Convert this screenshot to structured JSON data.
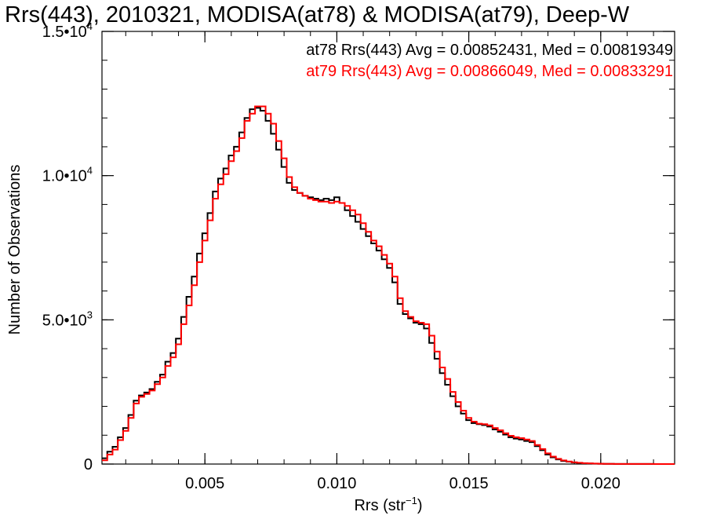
{
  "chart_data": {
    "type": "line",
    "title": "Rrs(443), 2010321, MODISA(at78) & MODISA(at79), Deep-W",
    "xlabel_main": "Rrs (str",
    "xlabel_sup": "−1",
    "xlabel_close": ")",
    "ylabel": "Number of Observations",
    "xlim": [
      0.0011,
      0.0228
    ],
    "ylim": [
      0,
      15000
    ],
    "x_ticks": [
      {
        "value": 0.005,
        "label": "0.005"
      },
      {
        "value": 0.01,
        "label": "0.010"
      },
      {
        "value": 0.015,
        "label": "0.015"
      },
      {
        "value": 0.02,
        "label": "0.020"
      }
    ],
    "x_minor_step": 0.001,
    "y_ticks": [
      {
        "value": 0,
        "mant": "0",
        "exp": ""
      },
      {
        "value": 5000,
        "mant": "5.0•10",
        "exp": "3"
      },
      {
        "value": 10000,
        "mant": "1.0•10",
        "exp": "4"
      },
      {
        "value": 15000,
        "mant": "1.5•10",
        "exp": "4"
      }
    ],
    "y_minor_step": 1000,
    "step_style": "histogram",
    "series": [
      {
        "name": "at78",
        "color": "#000000",
        "legend": "at78 Rrs(443) Avg = 0.00852431, Med = 0.00819349",
        "points": [
          [
            0.0011,
            200
          ],
          [
            0.0013,
            430
          ],
          [
            0.0015,
            600
          ],
          [
            0.0017,
            930
          ],
          [
            0.0019,
            1250
          ],
          [
            0.0021,
            1700
          ],
          [
            0.0023,
            2200
          ],
          [
            0.0025,
            2380
          ],
          [
            0.0027,
            2480
          ],
          [
            0.0029,
            2600
          ],
          [
            0.0031,
            2850
          ],
          [
            0.0033,
            3100
          ],
          [
            0.0035,
            3550
          ],
          [
            0.0037,
            3850
          ],
          [
            0.0039,
            4350
          ],
          [
            0.0041,
            5100
          ],
          [
            0.0043,
            5800
          ],
          [
            0.0045,
            6500
          ],
          [
            0.0047,
            7300
          ],
          [
            0.0049,
            8000
          ],
          [
            0.0051,
            8700
          ],
          [
            0.0053,
            9450
          ],
          [
            0.0055,
            9900
          ],
          [
            0.0057,
            10250
          ],
          [
            0.0059,
            10700
          ],
          [
            0.0061,
            11000
          ],
          [
            0.0063,
            11500
          ],
          [
            0.0065,
            12000
          ],
          [
            0.0067,
            12300
          ],
          [
            0.0069,
            12350
          ],
          [
            0.0071,
            12250
          ],
          [
            0.0073,
            11900
          ],
          [
            0.0075,
            11450
          ],
          [
            0.0077,
            10900
          ],
          [
            0.0079,
            10300
          ],
          [
            0.0081,
            9750
          ],
          [
            0.0083,
            9500
          ],
          [
            0.0085,
            9400
          ],
          [
            0.0087,
            9300
          ],
          [
            0.0089,
            9250
          ],
          [
            0.0091,
            9200
          ],
          [
            0.0093,
            9150
          ],
          [
            0.0095,
            9200
          ],
          [
            0.0097,
            9150
          ],
          [
            0.0099,
            9250
          ],
          [
            0.0101,
            9050
          ],
          [
            0.0103,
            8800
          ],
          [
            0.0105,
            8600
          ],
          [
            0.0107,
            8400
          ],
          [
            0.0109,
            8150
          ],
          [
            0.0111,
            7900
          ],
          [
            0.0113,
            7650
          ],
          [
            0.0115,
            7400
          ],
          [
            0.0117,
            7100
          ],
          [
            0.0119,
            6800
          ],
          [
            0.0121,
            6300
          ],
          [
            0.0123,
            5550
          ],
          [
            0.0125,
            5200
          ],
          [
            0.0127,
            5050
          ],
          [
            0.0129,
            4900
          ],
          [
            0.0131,
            4850
          ],
          [
            0.0133,
            4700
          ],
          [
            0.0135,
            4200
          ],
          [
            0.0137,
            3650
          ],
          [
            0.0139,
            3150
          ],
          [
            0.0141,
            2750
          ],
          [
            0.0143,
            2350
          ],
          [
            0.0145,
            2000
          ],
          [
            0.0147,
            1750
          ],
          [
            0.0149,
            1520
          ],
          [
            0.0151,
            1420
          ],
          [
            0.0153,
            1380
          ],
          [
            0.0155,
            1350
          ],
          [
            0.0157,
            1300
          ],
          [
            0.0159,
            1200
          ],
          [
            0.0161,
            1120
          ],
          [
            0.0163,
            1020
          ],
          [
            0.0165,
            930
          ],
          [
            0.0167,
            880
          ],
          [
            0.0169,
            850
          ],
          [
            0.0171,
            800
          ],
          [
            0.0173,
            760
          ],
          [
            0.0175,
            620
          ],
          [
            0.0177,
            480
          ],
          [
            0.0179,
            330
          ],
          [
            0.0181,
            230
          ],
          [
            0.0183,
            160
          ],
          [
            0.0185,
            110
          ],
          [
            0.0187,
            80
          ],
          [
            0.0189,
            55
          ],
          [
            0.0191,
            40
          ],
          [
            0.0193,
            28
          ],
          [
            0.0195,
            20
          ],
          [
            0.0197,
            14
          ],
          [
            0.0199,
            10
          ],
          [
            0.0201,
            7
          ],
          [
            0.0205,
            5
          ],
          [
            0.021,
            3
          ],
          [
            0.0215,
            2
          ],
          [
            0.022,
            1
          ],
          [
            0.0225,
            0
          ]
        ]
      },
      {
        "name": "at79",
        "color": "#ff0000",
        "legend": "at79 Rrs(443) Avg = 0.00866049, Med = 0.00833291",
        "points": [
          [
            0.0011,
            130
          ],
          [
            0.0013,
            330
          ],
          [
            0.0015,
            500
          ],
          [
            0.0017,
            830
          ],
          [
            0.0019,
            1150
          ],
          [
            0.0021,
            1600
          ],
          [
            0.0023,
            2100
          ],
          [
            0.0025,
            2330
          ],
          [
            0.0027,
            2430
          ],
          [
            0.0029,
            2550
          ],
          [
            0.0031,
            2770
          ],
          [
            0.0033,
            3000
          ],
          [
            0.0035,
            3400
          ],
          [
            0.0037,
            3700
          ],
          [
            0.0039,
            4150
          ],
          [
            0.0041,
            4850
          ],
          [
            0.0043,
            5500
          ],
          [
            0.0045,
            6200
          ],
          [
            0.0047,
            7000
          ],
          [
            0.0049,
            7750
          ],
          [
            0.0051,
            8450
          ],
          [
            0.0053,
            9200
          ],
          [
            0.0055,
            9700
          ],
          [
            0.0057,
            10050
          ],
          [
            0.0059,
            10500
          ],
          [
            0.0061,
            10850
          ],
          [
            0.0063,
            11300
          ],
          [
            0.0065,
            11900
          ],
          [
            0.0067,
            12150
          ],
          [
            0.0069,
            12400
          ],
          [
            0.0071,
            12400
          ],
          [
            0.0073,
            12150
          ],
          [
            0.0075,
            11800
          ],
          [
            0.0077,
            11200
          ],
          [
            0.0079,
            10600
          ],
          [
            0.0081,
            9950
          ],
          [
            0.0083,
            9600
          ],
          [
            0.0085,
            9400
          ],
          [
            0.0087,
            9300
          ],
          [
            0.0089,
            9200
          ],
          [
            0.0091,
            9150
          ],
          [
            0.0093,
            9100
          ],
          [
            0.0095,
            9100
          ],
          [
            0.0097,
            9050
          ],
          [
            0.0099,
            9100
          ],
          [
            0.0101,
            9050
          ],
          [
            0.0103,
            8950
          ],
          [
            0.0105,
            8800
          ],
          [
            0.0107,
            8650
          ],
          [
            0.0109,
            8350
          ],
          [
            0.0111,
            8050
          ],
          [
            0.0113,
            7750
          ],
          [
            0.0115,
            7550
          ],
          [
            0.0117,
            7250
          ],
          [
            0.0119,
            6950
          ],
          [
            0.0121,
            6500
          ],
          [
            0.0123,
            5750
          ],
          [
            0.0125,
            5300
          ],
          [
            0.0127,
            5100
          ],
          [
            0.0129,
            4950
          ],
          [
            0.0131,
            4900
          ],
          [
            0.0133,
            4850
          ],
          [
            0.0135,
            4450
          ],
          [
            0.0137,
            3900
          ],
          [
            0.0139,
            3350
          ],
          [
            0.0141,
            2950
          ],
          [
            0.0143,
            2500
          ],
          [
            0.0145,
            2150
          ],
          [
            0.0147,
            1850
          ],
          [
            0.0149,
            1600
          ],
          [
            0.0151,
            1470
          ],
          [
            0.0153,
            1400
          ],
          [
            0.0155,
            1380
          ],
          [
            0.0157,
            1340
          ],
          [
            0.0159,
            1250
          ],
          [
            0.0161,
            1170
          ],
          [
            0.0163,
            1070
          ],
          [
            0.0165,
            980
          ],
          [
            0.0167,
            930
          ],
          [
            0.0169,
            900
          ],
          [
            0.0171,
            850
          ],
          [
            0.0173,
            800
          ],
          [
            0.0175,
            660
          ],
          [
            0.0177,
            520
          ],
          [
            0.0179,
            370
          ],
          [
            0.0181,
            260
          ],
          [
            0.0183,
            180
          ],
          [
            0.0185,
            125
          ],
          [
            0.0187,
            90
          ],
          [
            0.0189,
            62
          ],
          [
            0.0191,
            45
          ],
          [
            0.0193,
            32
          ],
          [
            0.0195,
            23
          ],
          [
            0.0197,
            16
          ],
          [
            0.0199,
            11
          ],
          [
            0.0201,
            8
          ],
          [
            0.0205,
            5
          ],
          [
            0.021,
            3
          ],
          [
            0.0215,
            2
          ],
          [
            0.022,
            1
          ],
          [
            0.0225,
            0
          ]
        ]
      }
    ]
  }
}
